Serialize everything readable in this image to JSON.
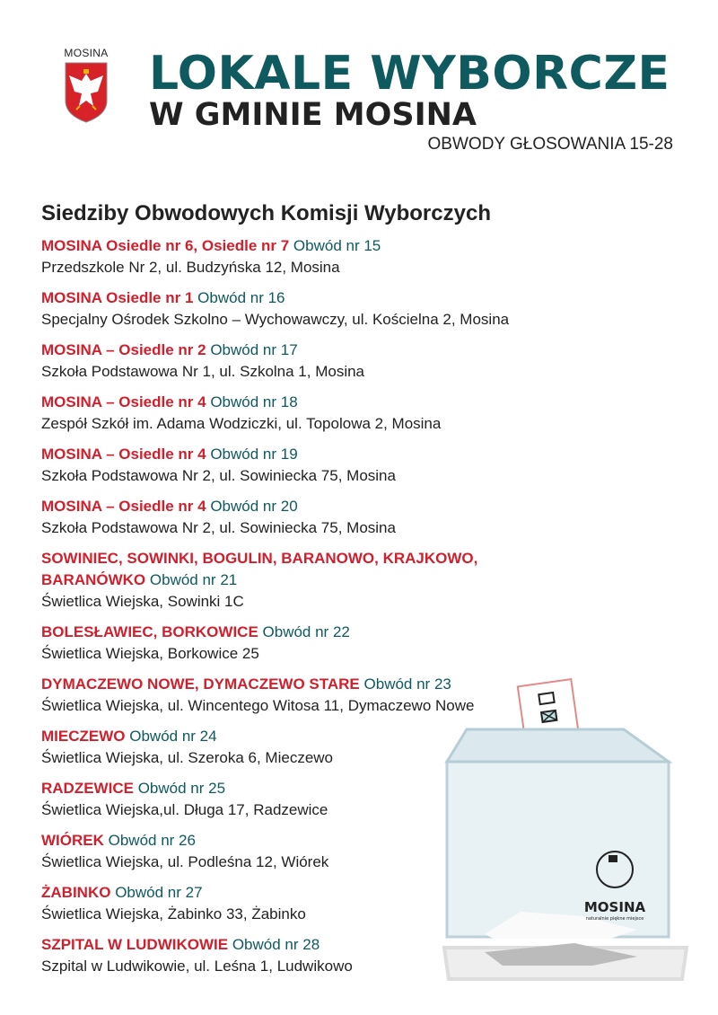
{
  "crest": {
    "label": "MOSINA"
  },
  "header": {
    "title_line1": "LOKALE WYBORCZE",
    "title_line2": "W GMINIE MOSINA",
    "subtitle": "OBWODY GŁOSOWANIA 15-28"
  },
  "section_title": "Siedziby Obwodowych Komisji Wyborczych",
  "entries": [
    {
      "name": "MOSINA Osiedle nr 6, Osiedle nr 7",
      "obwod": "Obwód nr 15",
      "address": "Przedszkole Nr 2, ul. Budzyńska 12, Mosina"
    },
    {
      "name": "MOSINA Osiedle nr 1",
      "obwod": "Obwód nr 16",
      "address": "Specjalny Ośrodek Szkolno – Wychowawczy, ul. Kościelna 2, Mosina"
    },
    {
      "name": "MOSINA – Osiedle nr 2",
      "obwod": "Obwód nr 17",
      "address": "Szkoła Podstawowa Nr 1, ul. Szkolna 1, Mosina"
    },
    {
      "name": "MOSINA – Osiedle nr 4",
      "obwod": "Obwód nr 18",
      "address": "Zespół Szkół im. Adama Wodziczki, ul. Topolowa 2, Mosina"
    },
    {
      "name": "MOSINA – Osiedle nr 4",
      "obwod": "Obwód nr 19",
      "address": "Szkoła Podstawowa Nr 2, ul. Sowiniecka 75, Mosina"
    },
    {
      "name": "MOSINA – Osiedle nr 4",
      "obwod": "Obwód nr 20",
      "address": "Szkoła Podstawowa Nr 2, ul. Sowiniecka 75, Mosina"
    },
    {
      "name": "SOWINIEC, SOWINKI, BOGULIN, BARANOWO, KRAJKOWO, BARANÓWKO",
      "obwod": "Obwód nr 21",
      "address": "Świetlica Wiejska, Sowinki 1C"
    },
    {
      "name": "BOLESŁAWIEC, BORKOWICE",
      "obwod": "Obwód nr 22",
      "address": "Świetlica Wiejska, Borkowice 25"
    },
    {
      "name": "DYMACZEWO NOWE, DYMACZEWO STARE",
      "obwod": "Obwód nr 23",
      "address": "Świetlica Wiejska, ul. Wincentego Witosa 11, Dymaczewo Nowe"
    },
    {
      "name": "MIECZEWO",
      "obwod": "Obwód nr 24",
      "address": "Świetlica Wiejska, ul. Szeroka 6, Mieczewo"
    },
    {
      "name": "RADZEWICE",
      "obwod": "Obwód nr 25",
      "address": "Świetlica Wiejska,ul. Długa 17, Radzewice"
    },
    {
      "name": "WIÓREK",
      "obwod": "Obwód nr 26",
      "address": "Świetlica Wiejska, ul. Podleśna 12, Wiórek"
    },
    {
      "name": "ŻABINKO",
      "obwod": "Obwód nr 27",
      "address": "Świetlica Wiejska, Żabinko 33, Żabinko"
    },
    {
      "name": "SZPITAL W LUDWIKOWIE",
      "obwod": "Obwód nr 28",
      "address": "Szpital w Ludwikowie, ul. Leśna 1, Ludwikowo"
    }
  ],
  "ballot_box": {
    "logo_text": "MOSINA",
    "logo_tagline": "naturalnie piękne miejsce"
  },
  "colors": {
    "red": "#d0202e",
    "teal": "#0e5a5e",
    "text": "#222222"
  }
}
